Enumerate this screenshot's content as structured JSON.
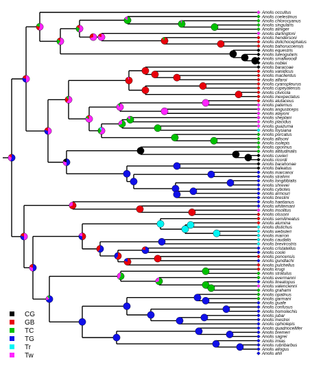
{
  "colors": {
    "CG": "#000000",
    "GB": "#e8000b",
    "TC": "#00c000",
    "TG": "#1010e8",
    "Tr": "#00f5f5",
    "Tw": "#ff24ff"
  },
  "legend": [
    {
      "key": "CG",
      "label": "CG"
    },
    {
      "key": "GB",
      "label": "GB"
    },
    {
      "key": "TC",
      "label": "TC"
    },
    {
      "key": "TG",
      "label": "TG"
    },
    {
      "key": "Tr",
      "label": "Tr"
    },
    {
      "key": "Tw",
      "label": "Tw"
    }
  ],
  "tips": [
    {
      "name": "Anolis occultus",
      "state": "Tw"
    },
    {
      "name": "Anolis coelestinus",
      "state": "TC"
    },
    {
      "name": "Anolis chlorocyanus",
      "state": "TC"
    },
    {
      "name": "Anolis singularis",
      "state": "TC"
    },
    {
      "name": "Anolis aliniger",
      "state": "TC"
    },
    {
      "name": "Anolis darlingtoni",
      "state": "Tw"
    },
    {
      "name": "Anolis hendersoni",
      "state": "GB"
    },
    {
      "name": "Anolis dolichocephalus",
      "state": "GB"
    },
    {
      "name": "Anolis bahorucoensis",
      "state": "GB"
    },
    {
      "name": "Anolis equestris",
      "state": "CG"
    },
    {
      "name": "Anolis luteogularis",
      "state": "CG"
    },
    {
      "name": "Anolis smallwoodi",
      "state": "CG"
    },
    {
      "name": "Anolis noblei",
      "state": "CG"
    },
    {
      "name": "Anolis baracoae",
      "state": "CG"
    },
    {
      "name": "Anolis vanidicus",
      "state": "GB"
    },
    {
      "name": "Anolis maclientus",
      "state": "GB"
    },
    {
      "name": "Anolis alfaroi",
      "state": "GB"
    },
    {
      "name": "Anolis cyanopleurus",
      "state": "GB"
    },
    {
      "name": "Anolis cupeyalensis",
      "state": "GB"
    },
    {
      "name": "Anolis clivicola",
      "state": "GB"
    },
    {
      "name": "Anolis inexpectatus",
      "state": "GB"
    },
    {
      "name": "Anolis alutaceus",
      "state": "GB"
    },
    {
      "name": "Anolis paternus",
      "state": "Tw"
    },
    {
      "name": "Anolis angusticeps",
      "state": "Tw"
    },
    {
      "name": "Anolis alayoni",
      "state": "Tw"
    },
    {
      "name": "Anolis sheplani",
      "state": "Tw"
    },
    {
      "name": "Anolis placidus",
      "state": "Tw"
    },
    {
      "name": "Anolis guazuma",
      "state": "Tw"
    },
    {
      "name": "Anolis loysiana",
      "state": "Tr"
    },
    {
      "name": "Anolis porcatus",
      "state": "TC"
    },
    {
      "name": "Anolis allisoni",
      "state": "TC"
    },
    {
      "name": "Anolis isolepis",
      "state": "TC"
    },
    {
      "name": "Anolis oporinus",
      "state": "TC"
    },
    {
      "name": "Anolis altitudinalis",
      "state": "TC"
    },
    {
      "name": "Anolis cuvieri",
      "state": "CG"
    },
    {
      "name": "Anolis ricordi",
      "state": "CG"
    },
    {
      "name": "Anolis barahonae",
      "state": "CG"
    },
    {
      "name": "Anolis baleatus",
      "state": "CG"
    },
    {
      "name": "Anolis marcanoi",
      "state": "TG"
    },
    {
      "name": "Anolis strahmi",
      "state": "TG"
    },
    {
      "name": "Anolis longitibialis",
      "state": "TG"
    },
    {
      "name": "Anolis shrevei",
      "state": "TG"
    },
    {
      "name": "Anolis cybotes",
      "state": "TG"
    },
    {
      "name": "Anolis armouri",
      "state": "TG"
    },
    {
      "name": "Anolis breslini",
      "state": "TG"
    },
    {
      "name": "Anolis haetianus",
      "state": "TG"
    },
    {
      "name": "Anolis whitemani",
      "state": "TG"
    },
    {
      "name": "Anolis insolitus",
      "state": "Tw"
    },
    {
      "name": "Anolis olssoni",
      "state": "GB"
    },
    {
      "name": "Anolis semilineatus",
      "state": "GB"
    },
    {
      "name": "Anolis alumina",
      "state": "GB"
    },
    {
      "name": "Anolis distichus",
      "state": "Tr"
    },
    {
      "name": "Anolis websteri",
      "state": "Tr"
    },
    {
      "name": "Anolis marron",
      "state": "Tr"
    },
    {
      "name": "Anolis caudalis",
      "state": "Tr"
    },
    {
      "name": "Anolis brevirostris",
      "state": "Tr"
    },
    {
      "name": "Anolis cristatellus",
      "state": "TG"
    },
    {
      "name": "Anolis cooki",
      "state": "TG"
    },
    {
      "name": "Anolis poncensis",
      "state": "GB"
    },
    {
      "name": "Anolis gundlachi",
      "state": "TG"
    },
    {
      "name": "Anolis pulchellus",
      "state": "GB"
    },
    {
      "name": "Anolis krugi",
      "state": "GB"
    },
    {
      "name": "Anolis stratulus",
      "state": "TC"
    },
    {
      "name": "Anolis evermanni",
      "state": "TC"
    },
    {
      "name": "Anolis lineatopus",
      "state": "TG"
    },
    {
      "name": "Anolis valencienni",
      "state": "Tw"
    },
    {
      "name": "Anolis grahami",
      "state": "TC"
    },
    {
      "name": "Anolis opalinus",
      "state": "TC"
    },
    {
      "name": "Anolis garmani",
      "state": "TC"
    },
    {
      "name": "Anolis guafe",
      "state": "TG"
    },
    {
      "name": "Anolis confusus",
      "state": "TG"
    },
    {
      "name": "Anolis homolechis",
      "state": "TG"
    },
    {
      "name": "Anolis jubar",
      "state": "TG"
    },
    {
      "name": "Anolis mestrei",
      "state": "TG"
    },
    {
      "name": "Anolis ophiolepis",
      "state": "TG"
    },
    {
      "name": "Anolis quadriocellifer",
      "state": "TG"
    },
    {
      "name": "Anolis bremeri",
      "state": "TG"
    },
    {
      "name": "Anolis sagrei",
      "state": "TG"
    },
    {
      "name": "Anolis imias",
      "state": "TG"
    },
    {
      "name": "Anolis rubribarbus",
      "state": "TG"
    },
    {
      "name": "Anolis allogus",
      "state": "TG"
    },
    {
      "name": "Anolis ahli",
      "state": "TG"
    }
  ]
}
